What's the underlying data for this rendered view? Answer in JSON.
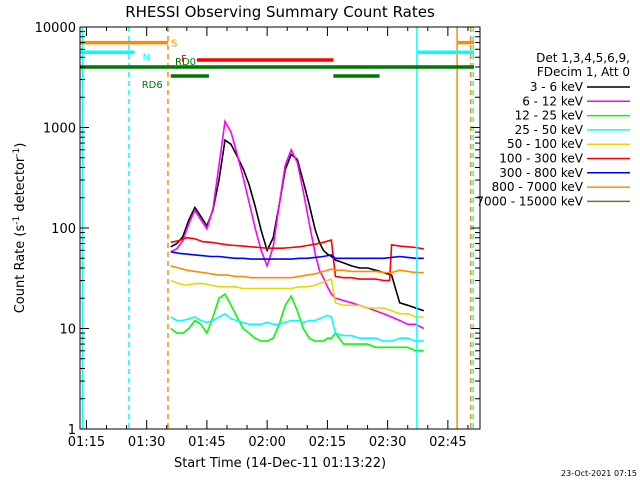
{
  "chart_data": {
    "type": "line",
    "title": "RHESSI Observing Summary Count Rates",
    "xlabel": "Start Time (14-Dec-11 01:13:22)",
    "ylabel_parts": [
      "Count Rate (s",
      "-1",
      " detector",
      "-1",
      ")"
    ],
    "yscale": "log",
    "ylim": [
      1,
      10000
    ],
    "xlim": [
      13.4,
      113
    ],
    "x_units": "minutes after 01:00 UT",
    "x_ticks": [
      {
        "x": 15,
        "label": "01:15"
      },
      {
        "x": 30,
        "label": "01:30"
      },
      {
        "x": 45,
        "label": "01:45"
      },
      {
        "x": 60,
        "label": "02:00"
      },
      {
        "x": 75,
        "label": "02:15"
      },
      {
        "x": 90,
        "label": "02:30"
      },
      {
        "x": 105,
        "label": "02:45"
      }
    ],
    "y_ticks": [
      {
        "y": 1,
        "label": "1"
      },
      {
        "y": 10,
        "label": "10"
      },
      {
        "y": 100,
        "label": "100"
      },
      {
        "y": 1000,
        "label": "1000"
      },
      {
        "y": 10000,
        "label": "10000"
      }
    ],
    "legend": {
      "header": [
        "Det 1,3,4,5,6,9,",
        "FDecim 1, Att 0"
      ],
      "placement": "right"
    },
    "series": [
      {
        "name": "3 - 6 keV",
        "color": "#000000",
        "x": [
          36.0,
          37.5,
          39.0,
          40.5,
          42.0,
          43.5,
          45.0,
          46.5,
          48.0,
          49.5,
          51.0,
          52.5,
          54.0,
          55.5,
          57.0,
          58.5,
          60.0,
          61.5,
          63.0,
          64.5,
          66.0,
          67.5,
          69.0,
          70.5,
          72.0,
          73.0,
          74.0,
          75.0,
          76.0,
          77.0,
          79.0,
          81.0,
          83.0,
          85.0,
          87.0,
          89.0,
          91.0,
          93.0,
          95.0,
          97.0,
          99.0
        ],
        "y": [
          65,
          70,
          82,
          120,
          160,
          130,
          105,
          150,
          300,
          750,
          680,
          520,
          390,
          270,
          165,
          95,
          60,
          80,
          170,
          380,
          540,
          480,
          290,
          170,
          95,
          72,
          60,
          55,
          52,
          48,
          45,
          42,
          40,
          40,
          38,
          36,
          34,
          18,
          17,
          16,
          15
        ]
      },
      {
        "name": "6 - 12 keV",
        "color": "#ff00ff",
        "x": [
          36.0,
          37.5,
          39.0,
          40.5,
          42.0,
          43.5,
          45.0,
          46.5,
          48.0,
          49.5,
          51.0,
          52.5,
          54.0,
          55.5,
          57.0,
          58.5,
          60.0,
          61.5,
          63.0,
          64.5,
          66.0,
          67.5,
          69.0,
          70.5,
          72.0,
          73.0,
          74.0,
          75.0,
          76.0,
          77.0,
          79.0,
          81.0,
          83.0,
          85.0,
          87.0,
          89.0,
          91.0,
          93.0,
          95.0,
          97.0,
          99.0
        ],
        "y": [
          58,
          62,
          75,
          110,
          150,
          120,
          98,
          155,
          420,
          1150,
          900,
          550,
          320,
          180,
          100,
          60,
          42,
          65,
          170,
          420,
          600,
          450,
          230,
          110,
          55,
          38,
          32,
          26,
          22,
          20,
          19,
          18,
          17,
          16,
          15,
          14,
          13,
          12,
          11,
          11,
          10
        ]
      },
      {
        "name": "12 - 25 keV",
        "color": "#00ff00",
        "x": [
          36.0,
          37.5,
          39.0,
          40.5,
          42.0,
          43.5,
          45.0,
          46.5,
          48.0,
          49.5,
          51.0,
          52.5,
          54.0,
          55.5,
          57.0,
          58.5,
          60.0,
          61.5,
          63.0,
          64.5,
          66.0,
          67.5,
          69.0,
          70.5,
          72.0,
          73.0,
          74.0,
          75.0,
          76.0,
          77.0,
          79.0,
          81.0,
          83.0,
          85.0,
          87.0,
          89.0,
          91.0,
          93.0,
          95.0,
          97.0,
          99.0
        ],
        "y": [
          10,
          9,
          9,
          10,
          12,
          11,
          9,
          13,
          20,
          22,
          17,
          13,
          10,
          9,
          8,
          7.5,
          7.5,
          8,
          11,
          17,
          21,
          15,
          10,
          8,
          7.5,
          7.5,
          7.5,
          8,
          8,
          9,
          7,
          7,
          7,
          7,
          6.5,
          6.5,
          6.5,
          6.5,
          6.5,
          6,
          6
        ]
      },
      {
        "name": "25 - 50 keV",
        "color": "#00ffff",
        "x": [
          36.0,
          37.5,
          39.0,
          40.5,
          42.0,
          43.5,
          45.0,
          46.5,
          48.0,
          49.5,
          51.0,
          52.5,
          54.0,
          55.5,
          57.0,
          58.5,
          60.0,
          61.5,
          63.0,
          64.5,
          66.0,
          67.5,
          69.0,
          70.5,
          72.0,
          73.0,
          74.0,
          75.0,
          76.0,
          77.0,
          79.0,
          81.0,
          83.0,
          85.0,
          87.0,
          89.0,
          91.0,
          93.0,
          95.0,
          97.0,
          99.0
        ],
        "y": [
          13,
          12,
          12,
          12.5,
          13,
          12,
          11.5,
          12,
          13,
          14,
          12.5,
          12,
          11.5,
          11,
          11,
          11,
          11.5,
          11,
          11,
          11.5,
          12,
          12,
          11.5,
          12,
          12,
          12.5,
          13,
          13.5,
          13,
          9,
          8.5,
          8.5,
          8,
          8,
          8,
          7.5,
          7.5,
          8,
          8,
          7.5,
          7.5
        ]
      },
      {
        "name": "50 - 100 keV",
        "color": "#dddd00",
        "x": [
          36.0,
          38.0,
          40.0,
          42.0,
          44.0,
          46.0,
          48.0,
          50.0,
          52.0,
          54.0,
          56.0,
          58.0,
          60.0,
          62.0,
          64.0,
          66.0,
          68.0,
          70.0,
          72.0,
          74.0,
          76.0,
          77.0,
          79.0,
          81.0,
          83.0,
          85.0,
          87.0,
          89.0,
          91.0,
          93.0,
          95.0,
          97.0,
          99.0
        ],
        "y": [
          30,
          28,
          27,
          28,
          28,
          27,
          26,
          26,
          26,
          25,
          25,
          25,
          25,
          25,
          25,
          25,
          26,
          26,
          27,
          29,
          31,
          18,
          17,
          17,
          17,
          16,
          16,
          16,
          15,
          14,
          14,
          13,
          13
        ]
      },
      {
        "name": "100 - 300 keV",
        "color": "#ff0000",
        "x": [
          36.0,
          38.0,
          40.0,
          42.0,
          44.0,
          46.0,
          48.0,
          50.0,
          52.0,
          54.0,
          56.0,
          58.0,
          60.0,
          62.0,
          64.0,
          66.0,
          68.0,
          70.0,
          72.0,
          74.0,
          76.0,
          77.0,
          79.0,
          81.0,
          83.0,
          85.0,
          87.0,
          89.0,
          90.5,
          91.0,
          93.0,
          95.0,
          97.0,
          99.0
        ],
        "y": [
          72,
          75,
          80,
          78,
          73,
          72,
          70,
          68,
          67,
          66,
          65,
          64,
          63,
          63,
          63,
          64,
          65,
          67,
          69,
          72,
          76,
          33,
          32,
          32,
          31,
          31,
          31,
          30,
          30,
          68,
          66,
          65,
          64,
          62
        ]
      },
      {
        "name": "300 - 800 keV",
        "color": "#0000ff",
        "x": [
          36.0,
          38.0,
          40.0,
          42.0,
          44.0,
          46.0,
          48.0,
          50.0,
          52.0,
          54.0,
          56.0,
          58.0,
          60.0,
          62.0,
          64.0,
          66.0,
          68.0,
          70.0,
          72.0,
          74.0,
          76.0,
          77.0,
          79.0,
          81.0,
          83.0,
          85.0,
          87.0,
          89.0,
          91.0,
          93.0,
          95.0,
          97.0,
          99.0
        ],
        "y": [
          58,
          56,
          55,
          54,
          53,
          52,
          52,
          51,
          50,
          50,
          49,
          49,
          49,
          49,
          49,
          49,
          50,
          50,
          51,
          52,
          54,
          50,
          50,
          50,
          50,
          50,
          50,
          50,
          51,
          52,
          51,
          50,
          50
        ]
      },
      {
        "name": "800 - 7000 keV",
        "color": "#ff8c00",
        "x": [
          36.0,
          38.0,
          40.0,
          42.0,
          44.0,
          46.0,
          48.0,
          50.0,
          52.0,
          54.0,
          56.0,
          58.0,
          60.0,
          62.0,
          64.0,
          66.0,
          68.0,
          70.0,
          72.0,
          74.0,
          76.0,
          77.0,
          79.0,
          81.0,
          83.0,
          85.0,
          87.0,
          89.0,
          91.0,
          93.0,
          95.0,
          97.0,
          99.0
        ],
        "y": [
          42,
          40,
          38,
          37,
          36,
          35,
          34,
          34,
          33,
          33,
          32,
          32,
          32,
          32,
          32,
          32,
          33,
          34,
          35,
          37,
          39,
          38,
          38,
          37,
          37,
          37,
          37,
          36,
          36,
          38,
          37,
          36,
          36
        ]
      },
      {
        "name": "7000 - 15000 keV",
        "color": "#8b6914",
        "x": [],
        "y": []
      }
    ],
    "state_bars": [
      {
        "label": "S",
        "color": "#ff8c00",
        "y": 7000,
        "segments": [
          [
            13.4,
            35.3
          ],
          [
            107.5,
            111.5
          ]
        ]
      },
      {
        "label": "N",
        "color": "#00ffff",
        "y": 5600,
        "segments": [
          [
            13.4,
            27.0
          ],
          [
            97.5,
            111.5
          ]
        ]
      },
      {
        "label": "F",
        "color": "#ff0000",
        "y": 4700,
        "segments": [
          [
            42.5,
            76.5
          ]
        ]
      },
      {
        "label": "RD0",
        "color": "#007700",
        "y": 4000,
        "segments": [
          [
            13.4,
            111.5
          ]
        ]
      },
      {
        "label": "RD6",
        "color": "#007700",
        "y": 3250,
        "segments": [
          [
            36.0,
            45.5
          ],
          [
            76.5,
            88.0
          ]
        ]
      }
    ],
    "vlines": [
      {
        "x": 14.0,
        "color": "#00ffff",
        "dash": false
      },
      {
        "x": 25.6,
        "color": "#00ffff",
        "dash": true
      },
      {
        "x": 35.3,
        "color": "#ff8c00",
        "dash": true
      },
      {
        "x": 97.3,
        "color": "#00ffff",
        "dash": false
      },
      {
        "x": 107.3,
        "color": "#ff8c00",
        "dash": false
      },
      {
        "x": 110.7,
        "color": "#ff8c00",
        "dash": true
      },
      {
        "x": 111.3,
        "color": "#00ffff",
        "dash": true
      }
    ]
  },
  "footer": {
    "timestamp": "23-Oct-2021 07:15"
  }
}
